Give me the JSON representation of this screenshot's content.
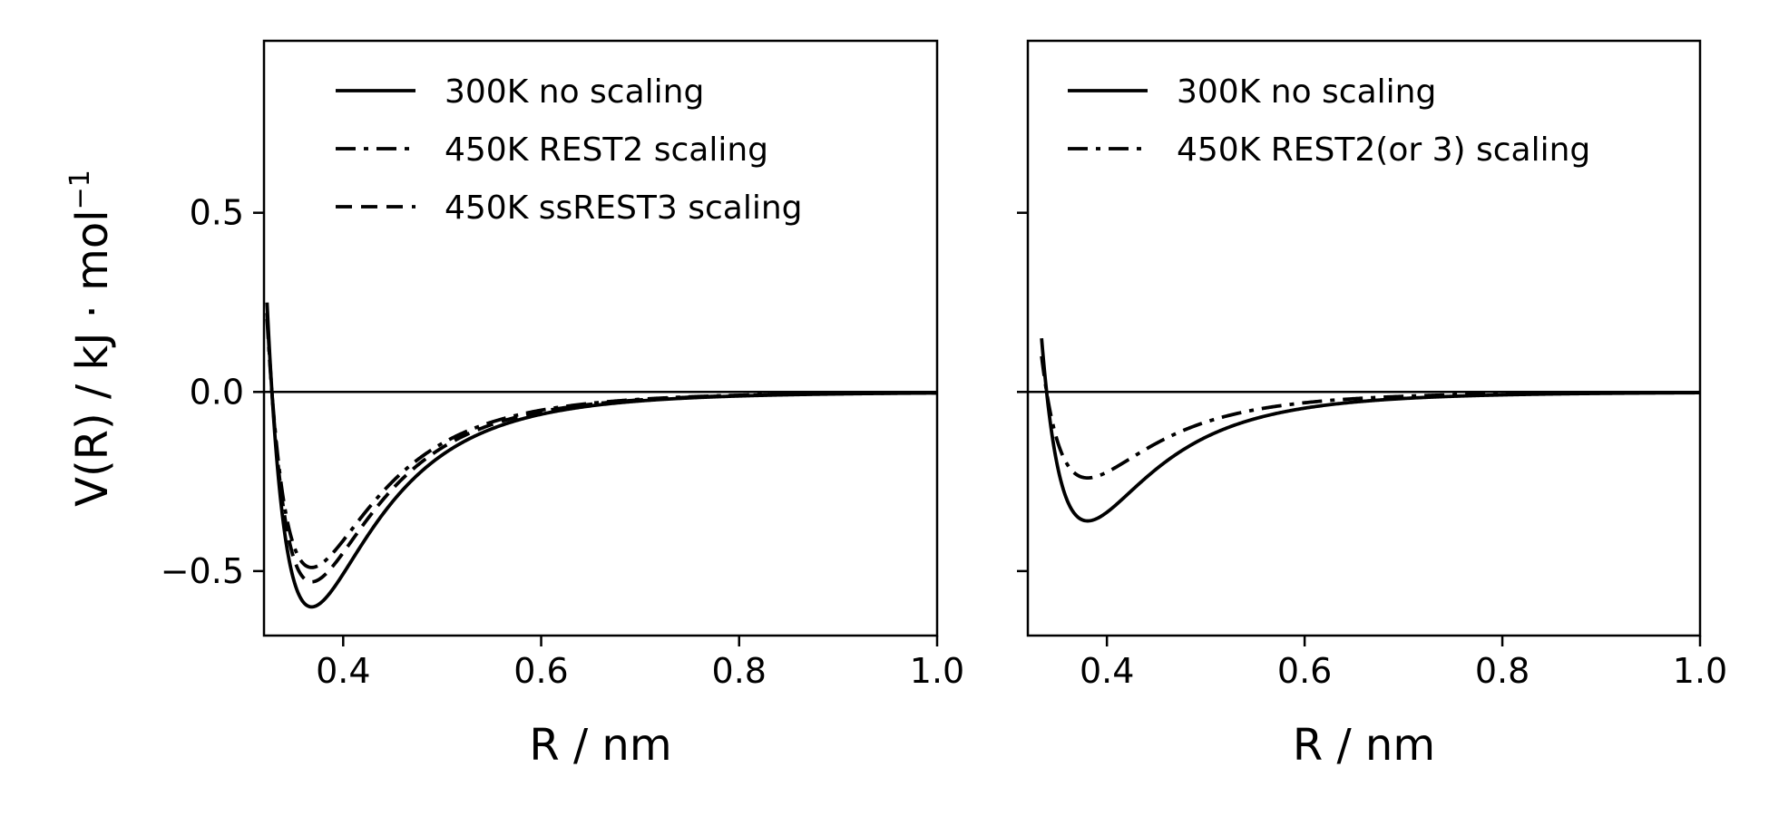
{
  "ylabel": {
    "main": "V(R) / kJ · mol",
    "exponent": "−1"
  },
  "chart_data": [
    {
      "type": "line",
      "xlabel": "R / nm",
      "ylabel": "V(R) / kJ · mol−1",
      "xlim": [
        0.32,
        1.0
      ],
      "ylim": [
        -0.68,
        0.98
      ],
      "xticks": [
        {
          "value": 0.4,
          "label": "0.4"
        },
        {
          "value": 0.6,
          "label": "0.6"
        },
        {
          "value": 0.8,
          "label": "0.8"
        },
        {
          "value": 1.0,
          "label": "1.0"
        }
      ],
      "yticks": [
        {
          "value": 0.5,
          "label": "0.5"
        },
        {
          "value": 0.0,
          "label": "0.0"
        },
        {
          "value": -0.5,
          "label": "−0.5"
        }
      ],
      "grid": false,
      "zero_line": true,
      "legend_position": "top",
      "series": [
        {
          "name": "300K no scaling",
          "style": "solid",
          "sigma": 0.328,
          "epsilon": 0.6
        },
        {
          "name": "450K REST2 scaling",
          "style": "dashdot",
          "sigma": 0.328,
          "epsilon": 0.49
        },
        {
          "name": "450K ssREST3 scaling",
          "style": "dashed",
          "sigma": 0.328,
          "epsilon": 0.53
        }
      ]
    },
    {
      "type": "line",
      "xlabel": "R / nm",
      "ylabel": "",
      "xlim": [
        0.32,
        1.0
      ],
      "ylim": [
        -0.68,
        0.98
      ],
      "xticks": [
        {
          "value": 0.4,
          "label": "0.4"
        },
        {
          "value": 0.6,
          "label": "0.6"
        },
        {
          "value": 0.8,
          "label": "0.8"
        },
        {
          "value": 1.0,
          "label": "1.0"
        }
      ],
      "yticks": [
        {
          "value": 0.5,
          "label": ""
        },
        {
          "value": 0.0,
          "label": ""
        },
        {
          "value": -0.5,
          "label": ""
        }
      ],
      "grid": false,
      "zero_line": true,
      "legend_position": "top",
      "series": [
        {
          "name": "300K no scaling",
          "style": "solid",
          "sigma": 0.339,
          "epsilon": 0.36
        },
        {
          "name": "450K REST2(or 3) scaling",
          "style": "dashdot",
          "sigma": 0.339,
          "epsilon": 0.24
        }
      ]
    }
  ]
}
